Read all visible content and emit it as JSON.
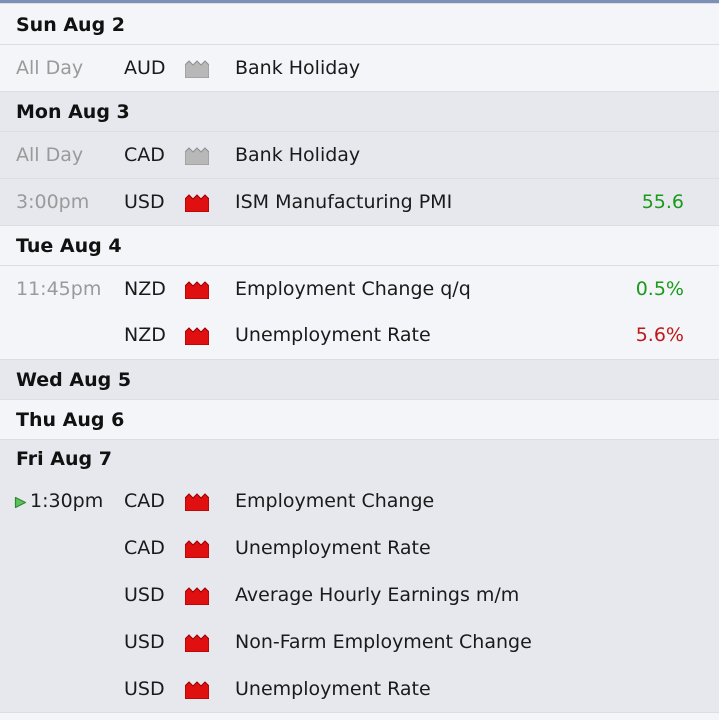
{
  "days": [
    {
      "label": "Sun Aug 2",
      "events": [
        {
          "time": "All Day",
          "currency": "AUD",
          "impact": "non-economic",
          "icon": "impact-gray-icon",
          "title": "Bank Holiday",
          "actual": ""
        }
      ]
    },
    {
      "label": "Mon Aug 3",
      "events": [
        {
          "time": "All Day",
          "currency": "CAD",
          "impact": "non-economic",
          "icon": "impact-gray-icon",
          "title": "Bank Holiday",
          "actual": ""
        },
        {
          "time": "3:00pm",
          "currency": "USD",
          "impact": "high",
          "icon": "impact-red-icon",
          "title": "ISM Manufacturing PMI",
          "actual": "55.6"
        }
      ]
    },
    {
      "label": "Tue Aug 4",
      "events": [
        {
          "time": "11:45pm",
          "currency": "NZD",
          "impact": "high",
          "icon": "impact-red-icon",
          "title": "Employment Change q/q",
          "actual": "0.5%"
        },
        {
          "time": "",
          "currency": "NZD",
          "impact": "high",
          "icon": "impact-red-icon",
          "title": "Unemployment Rate",
          "actual": "5.6%"
        }
      ]
    },
    {
      "label": "Wed Aug 5",
      "events": []
    },
    {
      "label": "Thu Aug 6",
      "events": []
    },
    {
      "label": "Fri Aug 7",
      "events": [
        {
          "time": "1:30pm",
          "currency": "CAD",
          "impact": "high",
          "icon": "impact-red-icon",
          "title": "Employment Change",
          "actual": "",
          "upcoming": true
        },
        {
          "time": "",
          "currency": "CAD",
          "impact": "high",
          "icon": "impact-red-icon",
          "title": "Unemployment Rate",
          "actual": ""
        },
        {
          "time": "",
          "currency": "USD",
          "impact": "high",
          "icon": "impact-red-icon",
          "title": "Average Hourly Earnings m/m",
          "actual": ""
        },
        {
          "time": "",
          "currency": "USD",
          "impact": "high",
          "icon": "impact-red-icon",
          "title": "Non-Farm Employment Change",
          "actual": ""
        },
        {
          "time": "",
          "currency": "USD",
          "impact": "high",
          "icon": "impact-red-icon",
          "title": "Unemployment Rate",
          "actual": ""
        }
      ]
    }
  ],
  "colors": {
    "better": "#1a9a1a",
    "worse": "#c01818",
    "header_bar": "#7c8fb7"
  },
  "actual_status": {
    "55.6": "better",
    "0.5%": "better",
    "5.6%": "worse"
  }
}
